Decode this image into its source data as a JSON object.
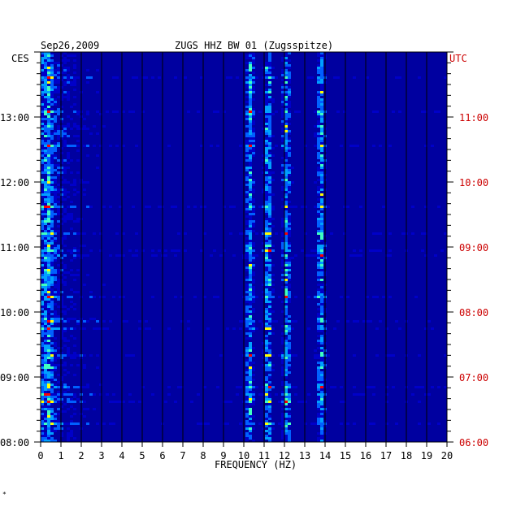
{
  "chart_data": {
    "type": "heatmap",
    "date": "Sep26,2009",
    "title": "ZUGS HHZ BW 01 (Zugsspitze)",
    "left_timezone": "CES",
    "right_timezone": "UTC",
    "xlabel": "FREQUENCY (HZ)",
    "x_ticks": [
      0,
      1,
      2,
      3,
      4,
      5,
      6,
      7,
      8,
      9,
      10,
      11,
      12,
      13,
      14,
      15,
      16,
      17,
      18,
      19,
      20
    ],
    "xlim": [
      0,
      20
    ],
    "y_ticks_left": [
      "13:00",
      "12:00",
      "11:00",
      "10:00",
      "09:00",
      "08:00"
    ],
    "y_ticks_right": [
      "11:00",
      "10:00",
      "09:00",
      "08:00",
      "07:00",
      "06:00"
    ],
    "y_tick_hours_left": [
      13,
      12,
      11,
      10,
      9,
      8
    ],
    "ylim_hours_left": [
      8,
      14
    ],
    "colors": {
      "background": "#0000a0",
      "low": "#0000c8",
      "mid": "#00a0ff",
      "high": "#ffff00",
      "peak": "#ff0000",
      "utc_labels": "#cc0000"
    },
    "dominant_bands_hz": [
      0.4,
      10.3,
      11.2,
      12.1,
      13.8
    ]
  },
  "footnote": "*"
}
